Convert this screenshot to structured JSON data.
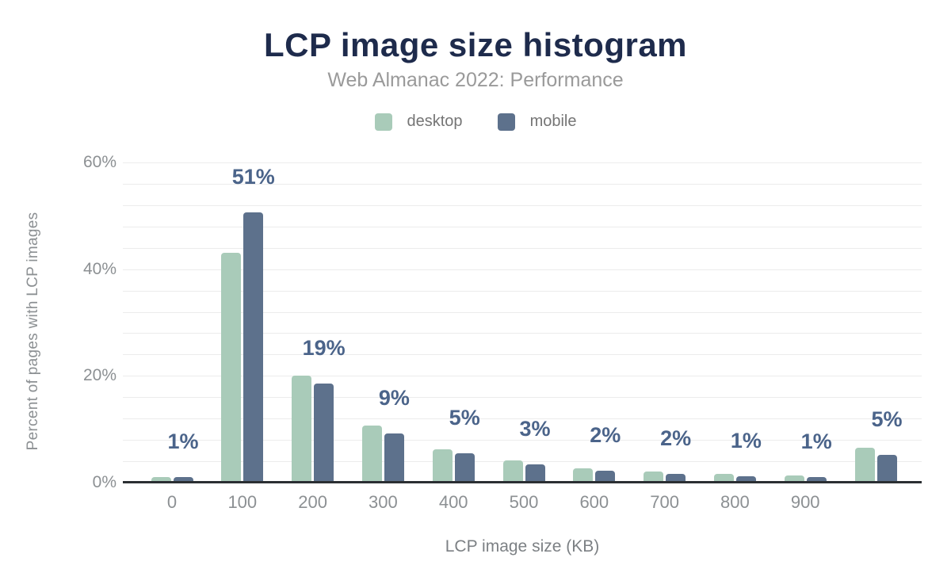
{
  "chart_data": {
    "type": "bar",
    "title": "LCP image size histogram",
    "subtitle": "Web Almanac 2022: Performance",
    "xlabel": "LCP image size (KB)",
    "ylabel": "Percent of pages with LCP images",
    "categories": [
      "0",
      "100",
      "200",
      "300",
      "400",
      "500",
      "600",
      "700",
      "800",
      "900",
      ""
    ],
    "series": [
      {
        "name": "desktop",
        "values": [
          1.1,
          43,
          20,
          10.7,
          6.2,
          4.2,
          2.7,
          2.1,
          1.6,
          1.3,
          6.5
        ]
      },
      {
        "name": "mobile",
        "values": [
          1.0,
          50.7,
          18.5,
          9.2,
          5.5,
          3.4,
          2.3,
          1.6,
          1.2,
          1.0,
          5.2
        ]
      }
    ],
    "value_labels": [
      "1%",
      "51%",
      "19%",
      "9%",
      "5%",
      "3%",
      "2%",
      "2%",
      "1%",
      "1%",
      "5%"
    ],
    "value_labels_series": "mobile",
    "y_ticks": [
      {
        "value": 0,
        "label": "0%"
      },
      {
        "value": 20,
        "label": "20%"
      },
      {
        "value": 40,
        "label": "40%"
      },
      {
        "value": 60,
        "label": "60%"
      }
    ],
    "ylim": [
      0,
      60
    ],
    "gridline_step": 4,
    "grid": true,
    "legend_position": "top",
    "legend": [
      {
        "label": "desktop",
        "color": "#a9cbb9"
      },
      {
        "label": "mobile",
        "color": "#5d718c"
      }
    ]
  },
  "colors": {
    "title": "#1e2b4c",
    "subtitle": "#9a9a9a",
    "legend_text": "#757575",
    "tick_text": "#8c9093",
    "axis_title_text": "#7c8084",
    "value_label": "#4b648a",
    "gridline": "#ececec",
    "axis_line": "#2b2f33",
    "desktop_bar": "#a9cbb9",
    "mobile_bar": "#5d718c",
    "background": "#ffffff"
  }
}
